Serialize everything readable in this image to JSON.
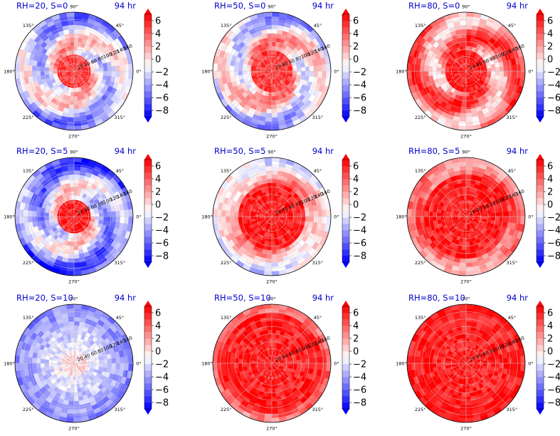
{
  "figure": {
    "time_label": "94 hr",
    "angular_ticks": [
      "0°",
      "45°",
      "90°",
      "135°",
      "180°",
      "225°",
      "270°",
      "315°"
    ],
    "radial_ticks": [
      "20",
      "40",
      "60",
      "80",
      "100",
      "120",
      "140",
      "160"
    ],
    "colorbar_ticks": [
      "6",
      "4",
      "2",
      "0",
      "−2",
      "−4",
      "−6",
      "−8"
    ],
    "colorbar_levels": [
      -8,
      -7,
      -6,
      -5,
      -4,
      -3,
      -2,
      -1,
      0,
      1,
      2,
      3,
      4,
      5,
      6,
      7
    ],
    "colormap": "bwr",
    "color_low": "#0000ff",
    "color_mid": "#ffffff",
    "color_high": "#ff0000",
    "title_color": "#0000cc"
  },
  "chart_data": [
    {
      "type": "heatmap",
      "projection": "polar",
      "title": "RH=20, S=0",
      "time": "94 hr",
      "rlim": [
        0,
        160
      ],
      "pattern": {
        "core": 6,
        "core_r": 0.3,
        "band": 2,
        "outer": -3,
        "spiral": 1
      }
    },
    {
      "type": "heatmap",
      "projection": "polar",
      "title": "RH=50, S=0",
      "time": "94 hr",
      "rlim": [
        0,
        160
      ],
      "pattern": {
        "core": 6,
        "core_r": 0.35,
        "band": 3,
        "outer": -2,
        "spiral": 1
      }
    },
    {
      "type": "heatmap",
      "projection": "polar",
      "title": "RH=80, S=0",
      "time": "94 hr",
      "rlim": [
        0,
        160
      ],
      "pattern": {
        "core": 7,
        "core_r": 0.35,
        "band": 4,
        "outer": 4,
        "spiral": 1
      }
    },
    {
      "type": "heatmap",
      "projection": "polar",
      "title": "RH=20, S=5",
      "time": "94 hr",
      "rlim": [
        0,
        160
      ],
      "pattern": {
        "core": 7,
        "core_r": 0.3,
        "band": 1,
        "outer": -5,
        "spiral": 1
      }
    },
    {
      "type": "heatmap",
      "projection": "polar",
      "title": "RH=50, S=5",
      "time": "94 hr",
      "rlim": [
        0,
        160
      ],
      "pattern": {
        "core": 7,
        "core_r": 0.55,
        "band": 4,
        "outer": -1,
        "spiral": 0.5
      }
    },
    {
      "type": "heatmap",
      "projection": "polar",
      "title": "RH=80, S=5",
      "time": "94 hr",
      "rlim": [
        0,
        160
      ],
      "pattern": {
        "core": 7,
        "core_r": 0.75,
        "band": 5,
        "outer": 3,
        "spiral": 0.5
      }
    },
    {
      "type": "heatmap",
      "projection": "polar",
      "title": "RH=20, S=10",
      "time": "94 hr",
      "rlim": [
        0,
        160
      ],
      "pattern": {
        "core": 1,
        "core_r": 0.2,
        "band": 0,
        "outer": -4,
        "spiral": 0
      }
    },
    {
      "type": "heatmap",
      "projection": "polar",
      "title": "RH=50, S=10",
      "time": "94 hr",
      "rlim": [
        0,
        160
      ],
      "pattern": {
        "core": 7,
        "core_r": 0.85,
        "band": 6,
        "outer": 4,
        "spiral": 0.3
      }
    },
    {
      "type": "heatmap",
      "projection": "polar",
      "title": "RH=80, S=10",
      "time": "94 hr",
      "rlim": [
        0,
        160
      ],
      "pattern": {
        "core": 7,
        "core_r": 1.0,
        "band": 7,
        "outer": 7,
        "spiral": 0
      }
    }
  ]
}
